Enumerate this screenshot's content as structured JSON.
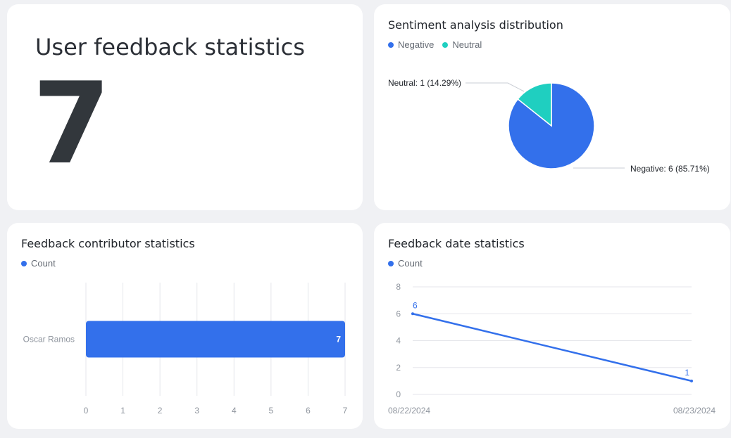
{
  "total_card": {
    "title": "User feedback statistics",
    "value": "7"
  },
  "colors": {
    "negative": "#3370eb",
    "neutral": "#1fcfc0",
    "count": "#3370eb"
  },
  "chart_data": [
    {
      "type": "pie",
      "title": "Sentiment analysis distribution",
      "legend": [
        "Negative",
        "Neutral"
      ],
      "slices": [
        {
          "name": "Negative",
          "value": 6,
          "percent": "85.71%",
          "label": "Negative: 6 (85.71%)"
        },
        {
          "name": "Neutral",
          "value": 1,
          "percent": "14.29%",
          "label": "Neutral: 1 (14.29%)"
        }
      ]
    },
    {
      "type": "bar",
      "orientation": "horizontal",
      "title": "Feedback contributor statistics",
      "legend": [
        "Count"
      ],
      "categories": [
        "Oscar Ramos"
      ],
      "values": [
        7
      ],
      "value_labels": [
        "7"
      ],
      "xlim": [
        0,
        7
      ],
      "xticks": [
        "0",
        "1",
        "2",
        "3",
        "4",
        "5",
        "6",
        "7"
      ],
      "grid": true
    },
    {
      "type": "line",
      "title": "Feedback date statistics",
      "legend": [
        "Count"
      ],
      "x": [
        "08/22/2024",
        "08/23/2024"
      ],
      "values": [
        6,
        1
      ],
      "value_labels": [
        "6",
        "1"
      ],
      "ylim": [
        0,
        8
      ],
      "yticks": [
        "0",
        "2",
        "4",
        "6",
        "8"
      ],
      "grid": true
    }
  ]
}
